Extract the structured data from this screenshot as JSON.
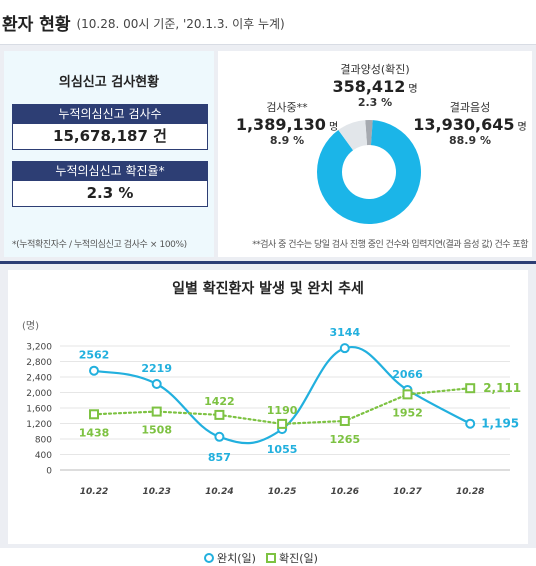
{
  "header": {
    "title": "환자 현황",
    "subtitle": "(10.28. 00시 기준, '20.1.3. 이후 누계)"
  },
  "test_status": {
    "title": "의심신고 검사현황",
    "cumulative_tests_label": "누적의심신고 검사수",
    "cumulative_tests_value": "15,678,187 건",
    "positive_rate_label": "누적의심신고 확진율*",
    "positive_rate_value": "2.3 %",
    "footnote": "*(누적확진자수 / 누적의심신고 검사수 × 100%)"
  },
  "results": {
    "testing": {
      "label": "검사중**",
      "value": "1,389,130",
      "unit": "명",
      "percent": "8.9 %",
      "color": "#e2e6ea",
      "share": 8.9
    },
    "positive": {
      "label": "결과양성(확진)",
      "value": "358,412",
      "unit": "명",
      "percent": "2.3 %",
      "color": "#a6aab0",
      "share": 2.3
    },
    "negative": {
      "label": "결과음성",
      "value": "13,930,645",
      "unit": "명",
      "percent": "88.9 %",
      "color": "#1bb5e8",
      "share": 88.9
    },
    "footnote": "**검사 중 건수는 당일 검사 진행 중인 건수와 입력지연(결과 음성 값) 건수 포함"
  },
  "trend_chart": {
    "title": "일별 확진환자 발생 및 완치 추세",
    "unit_label": "(명)",
    "legend": {
      "recovered": "완치(일)",
      "confirmed": "확진(일)"
    }
  },
  "chart_data": {
    "type": "line",
    "title": "일별 확진환자 발생 및 완치 추세",
    "ylabel": "(명)",
    "categories": [
      "10.22",
      "10.23",
      "10.24",
      "10.25",
      "10.26",
      "10.27",
      "10.28"
    ],
    "ylim": [
      0,
      3200
    ],
    "yticks": [
      0,
      400,
      800,
      1200,
      1600,
      2000,
      2400,
      2800,
      3200
    ],
    "ytick_labels": [
      "0",
      "400",
      "800",
      "1,200",
      "1,600",
      "2,000",
      "2,400",
      "2,800",
      "3,200"
    ],
    "series": [
      {
        "name": "완치(일)",
        "values": [
          2562,
          2219,
          857,
          1055,
          3144,
          2066,
          1195
        ],
        "labels": [
          "2562",
          "2219",
          "857",
          "1055",
          "3144",
          "2066",
          "1,195"
        ],
        "color": "#22b0de",
        "style": "solid",
        "marker": "circle"
      },
      {
        "name": "확진(일)",
        "values": [
          1438,
          1508,
          1422,
          1190,
          1265,
          1952,
          2111
        ],
        "labels": [
          "1438",
          "1508",
          "1422",
          "1190",
          "1265",
          "1952",
          "2,111"
        ],
        "color": "#7dc242",
        "style": "dotted",
        "marker": "square"
      }
    ],
    "grid": "horizontal"
  }
}
